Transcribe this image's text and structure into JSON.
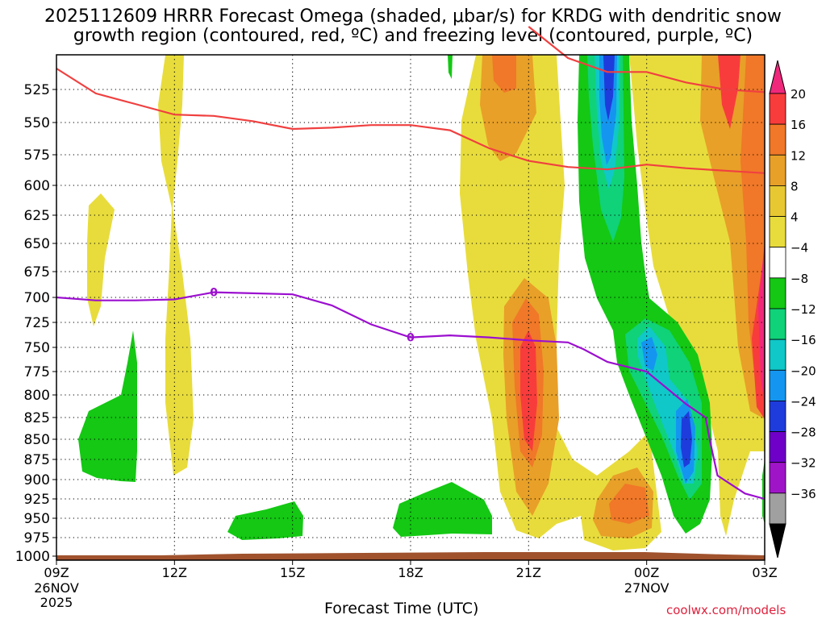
{
  "title_line1": "2025112609 HRRR Forecast Omega (shaded, μbar/s) for KRDG with dendritic snow",
  "title_line2": "growth region (contoured, red, ºC) and freezing level (contoured, purple, ºC)",
  "xlabel": "Forecast Time (UTC)",
  "credit": "coolwx.com/models",
  "chart_data": {
    "type": "heatmap",
    "title": "2025112609 HRRR Forecast Omega (shaded, μbar/s) for KRDG with dendritic snow growth region (contoured, red, ºC) and freezing level (contoured, purple, ºC)",
    "xlabel": "Forecast Time (UTC)",
    "ylabel": "",
    "x_hours_from_09Z_26NOV": [
      0,
      18
    ],
    "y_ticks": [
      "525",
      "550",
      "575",
      "600",
      "625",
      "650",
      "675",
      "700",
      "725",
      "750",
      "775",
      "800",
      "825",
      "850",
      "875",
      "900",
      "925",
      "950",
      "975",
      "1000"
    ],
    "x_ticks": [
      {
        "label": "09Z",
        "sub1": "26NOV",
        "sub2": "2025",
        "hour": 0
      },
      {
        "label": "12Z",
        "sub1": "",
        "sub2": "",
        "hour": 3
      },
      {
        "label": "15Z",
        "sub1": "",
        "sub2": "",
        "hour": 6
      },
      {
        "label": "18Z",
        "sub1": "",
        "sub2": "",
        "hour": 9
      },
      {
        "label": "21Z",
        "sub1": "",
        "sub2": "",
        "hour": 12
      },
      {
        "label": "00Z",
        "sub1": "27NOV",
        "sub2": "",
        "hour": 15
      },
      {
        "label": "03Z",
        "sub1": "",
        "sub2": "",
        "hour": 18
      }
    ],
    "colorbar_levels": [
      20,
      16,
      12,
      8,
      4,
      -4,
      -8,
      -12,
      -16,
      -20,
      -24,
      -28,
      -32,
      -36
    ],
    "colorbar_colors": [
      "#f0287c",
      "#f83c3c",
      "#f07828",
      "#e8a028",
      "#e8c832",
      "#e8dc3c",
      "#ffffff",
      "#14c814",
      "#10d278",
      "#10c8c8",
      "#1496f0",
      "#1e3cdc",
      "#6e00c8",
      "#a014c8",
      "#a0a0a0",
      "#000000"
    ],
    "freezing_level_label": "0",
    "freezing_level_line": [
      [
        0,
        700
      ],
      [
        1,
        703
      ],
      [
        2,
        703
      ],
      [
        3,
        702
      ],
      [
        4,
        695
      ],
      [
        5,
        696
      ],
      [
        6,
        697
      ],
      [
        7,
        708
      ],
      [
        8,
        727
      ],
      [
        9,
        740
      ],
      [
        10,
        738
      ],
      [
        11,
        740
      ],
      [
        12,
        743
      ],
      [
        13,
        745
      ],
      [
        13.4,
        752
      ],
      [
        14,
        765
      ],
      [
        15,
        775
      ],
      [
        16,
        810
      ],
      [
        16.5,
        825
      ],
      [
        16.6,
        850
      ],
      [
        16.8,
        895
      ],
      [
        17.5,
        918
      ],
      [
        18,
        925
      ]
    ],
    "dgz_top_line": [
      [
        0,
        519
      ],
      [
        1,
        528
      ],
      [
        2,
        536
      ],
      [
        3,
        544
      ],
      [
        4,
        545
      ],
      [
        5,
        549
      ],
      [
        6,
        555
      ],
      [
        7,
        554
      ],
      [
        8,
        552
      ],
      [
        9,
        552
      ],
      [
        10,
        556
      ],
      [
        11,
        570
      ],
      [
        12,
        580
      ],
      [
        13,
        585
      ],
      [
        14,
        587
      ],
      [
        15,
        583
      ],
      [
        16,
        586
      ],
      [
        17,
        588
      ],
      [
        18,
        590
      ]
    ],
    "dgz_upper_line": [
      [
        12,
        507
      ],
      [
        13,
        516
      ],
      [
        14,
        520
      ],
      [
        15,
        520
      ],
      [
        16,
        523
      ],
      [
        17,
        525
      ],
      [
        18,
        527
      ]
    ]
  }
}
